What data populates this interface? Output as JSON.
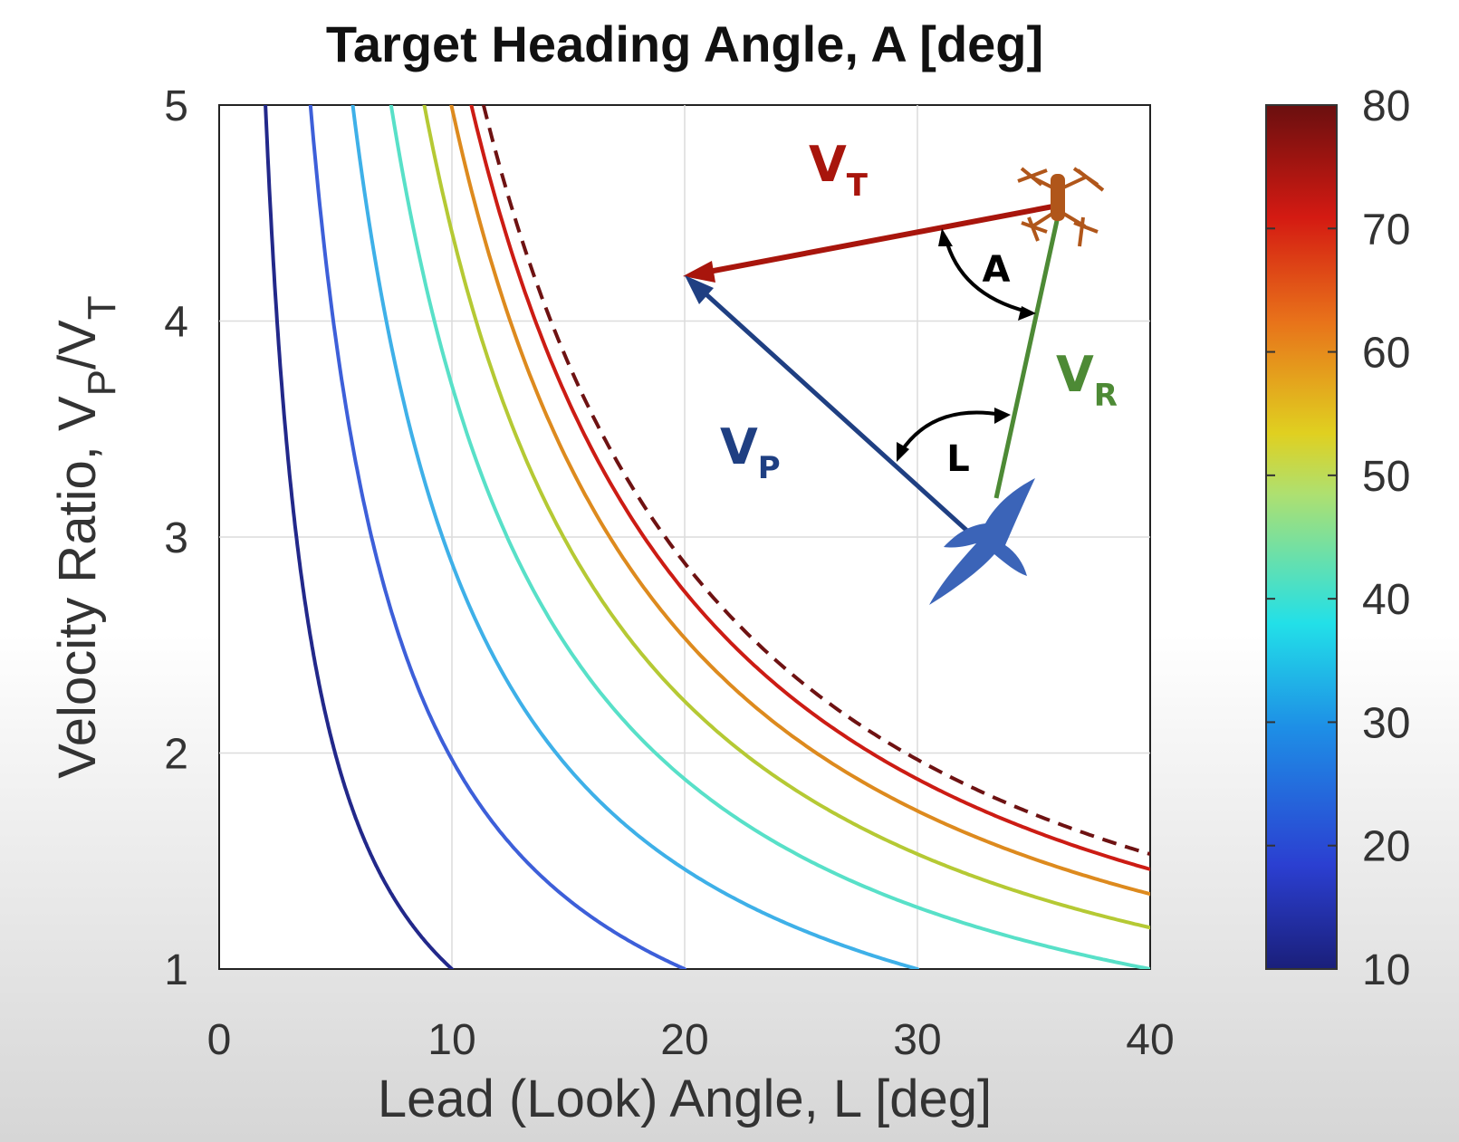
{
  "chart_data": {
    "type": "line",
    "title": "Target Heading Angle, A [deg]",
    "xlabel": "Lead (Look) Angle, L [deg]",
    "ylabel": {
      "main": "Velocity Ratio, V",
      "sub1": "P",
      "slash": "/V",
      "sub2": "T"
    },
    "xlim": [
      0,
      40
    ],
    "ylim": [
      1,
      5
    ],
    "xticks": [
      "0",
      "10",
      "20",
      "30",
      "40"
    ],
    "yticks": [
      "1",
      "2",
      "3",
      "4",
      "5"
    ],
    "grid": true,
    "colorbar": {
      "range": [
        10,
        80
      ],
      "ticks": [
        "10",
        "20",
        "30",
        "40",
        "50",
        "60",
        "70",
        "80"
      ],
      "colormap": "jet"
    },
    "series": [
      {
        "A": 10,
        "color": "#22288a",
        "style": "solid"
      },
      {
        "A": 20,
        "color": "#3d5fd9",
        "style": "solid"
      },
      {
        "A": 30,
        "color": "#3eb0e8",
        "style": "solid"
      },
      {
        "A": 40,
        "color": "#58e0c8",
        "style": "solid"
      },
      {
        "A": 50,
        "color": "#b5c934",
        "style": "solid"
      },
      {
        "A": 60,
        "color": "#dd8a1e",
        "style": "solid"
      },
      {
        "A": 70,
        "color": "#cc1c14",
        "style": "solid"
      },
      {
        "A": 80,
        "color": "#6e1212",
        "style": "dashed"
      }
    ]
  },
  "inset": {
    "vt": {
      "main": "V",
      "sub": "T",
      "color": "#a8150c"
    },
    "vp": {
      "main": "V",
      "sub": "P",
      "color": "#1f3f82"
    },
    "vr": {
      "main": "V",
      "sub": "R",
      "color": "#4d8a35"
    },
    "angle_a": "A",
    "angle_l": "L",
    "bird_icon": "bird-icon",
    "drone_icon": "drone-icon"
  }
}
